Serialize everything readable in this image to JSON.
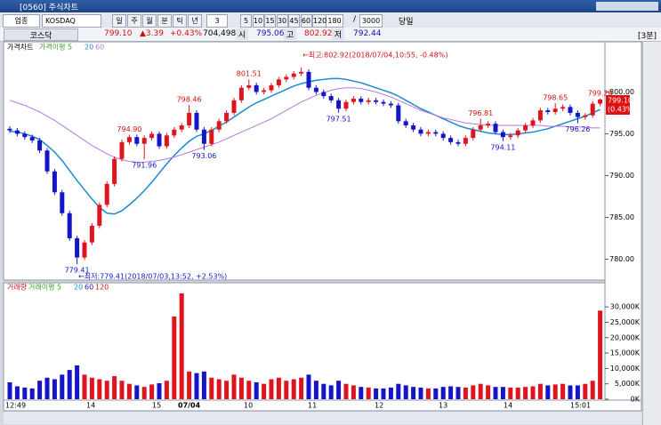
{
  "window": {
    "title": "[0560] 주식차트"
  },
  "toolbar": {
    "market_type": "업종",
    "market": "KOSDAQ",
    "periods": [
      "일",
      "주",
      "월",
      "분",
      "틱",
      "년"
    ],
    "interval": "3",
    "minutes": [
      "5",
      "10",
      "15",
      "30",
      "45",
      "60",
      "120"
    ],
    "count": "180",
    "sep": "/",
    "total": "3000",
    "today": "당일"
  },
  "info": {
    "name": "코스닥",
    "price": "799.10",
    "change": "▲3.39",
    "rate": "+0.43%",
    "volume": "704,498",
    "open_label": "시",
    "open": "795.06",
    "high_label": "고",
    "high": "802.92",
    "low_label": "저",
    "low": "792.44",
    "period": "[3분]"
  },
  "price_box": {
    "price": "799.10",
    "rate": "(0.43%)"
  },
  "x_labels": [
    "12:49",
    "14",
    "15",
    "07/04",
    "10",
    "11",
    "12",
    "13",
    "14",
    "15:01"
  ],
  "chart_data": [
    {
      "type": "candlestick",
      "title": "가격차트",
      "ma_label": "가격이평 5",
      "up_color": "#e0141e",
      "down_color": "#1414c8",
      "open": [
        795.6,
        795.4,
        795.0,
        794.6,
        794.2,
        793.0,
        790.5,
        788.0,
        785.5,
        782.5,
        780.2,
        782.0,
        784.0,
        786.5,
        789.0,
        792.0,
        794.0,
        794.6,
        793.8,
        794.5,
        795.0,
        793.5,
        794.8,
        795.5,
        796.0,
        797.5,
        795.5,
        793.8,
        795.5,
        796.5,
        797.5,
        799.0,
        800.5,
        800.8,
        800.0,
        800.2,
        800.8,
        801.5,
        801.8,
        802.2,
        802.4,
        800.5,
        800.0,
        799.5,
        799.0,
        798.0,
        798.8,
        799.2,
        798.8,
        799.0,
        798.8,
        798.6,
        798.4,
        796.5,
        796.0,
        795.5,
        795.0,
        795.2,
        795.0,
        794.5,
        794.0,
        793.8,
        794.5,
        795.5,
        796.0,
        796.2,
        795.2,
        794.6,
        794.8,
        795.4,
        796.0,
        796.6,
        797.8,
        797.6,
        798.0,
        798.2,
        797.5,
        797.0,
        797.2,
        798.6
      ],
      "high": [
        795.9,
        795.7,
        795.3,
        794.9,
        794.5,
        793.3,
        790.8,
        788.3,
        785.8,
        782.8,
        782.3,
        784.3,
        786.8,
        789.3,
        792.3,
        794.3,
        794.9,
        794.9,
        794.8,
        795.3,
        795.3,
        795.1,
        795.8,
        796.3,
        798.46,
        797.8,
        795.8,
        795.8,
        796.8,
        797.8,
        799.3,
        800.8,
        801.51,
        801.1,
        800.5,
        801.1,
        801.8,
        802.1,
        802.5,
        802.92,
        802.7,
        800.8,
        800.3,
        799.8,
        799.3,
        799.1,
        799.5,
        799.5,
        799.3,
        799.3,
        799.1,
        798.9,
        798.7,
        796.8,
        796.3,
        795.8,
        795.5,
        795.5,
        795.3,
        794.8,
        794.3,
        794.8,
        795.8,
        796.81,
        796.5,
        796.5,
        795.5,
        795.1,
        795.7,
        796.3,
        796.9,
        798.1,
        798.1,
        798.65,
        798.5,
        798.5,
        797.8,
        797.5,
        798.9,
        799.2
      ],
      "low": [
        795.1,
        794.7,
        794.3,
        793.9,
        792.7,
        790.2,
        787.7,
        785.2,
        782.2,
        779.41,
        779.9,
        781.7,
        783.7,
        786.2,
        788.7,
        791.7,
        793.7,
        793.5,
        791.96,
        794.2,
        793.2,
        793.2,
        794.5,
        795.2,
        795.7,
        795.2,
        793.06,
        793.5,
        795.2,
        796.2,
        797.2,
        798.7,
        800.2,
        799.7,
        799.7,
        799.9,
        800.5,
        801.2,
        801.5,
        801.9,
        800.2,
        799.7,
        799.2,
        798.7,
        797.51,
        797.7,
        798.5,
        798.5,
        798.5,
        798.5,
        798.3,
        798.1,
        796.2,
        795.7,
        795.2,
        794.7,
        794.7,
        794.7,
        794.2,
        793.7,
        793.5,
        793.5,
        794.2,
        795.2,
        795.7,
        794.9,
        794.11,
        794.3,
        794.5,
        795.1,
        795.7,
        796.3,
        797.3,
        797.3,
        797.7,
        797.2,
        796.26,
        796.7,
        796.9,
        798.3
      ],
      "close": [
        795.4,
        795.0,
        794.6,
        794.2,
        793.0,
        790.5,
        788.0,
        785.5,
        782.5,
        780.2,
        782.0,
        784.0,
        786.5,
        789.0,
        792.0,
        794.0,
        794.6,
        793.8,
        794.5,
        795.0,
        793.5,
        794.8,
        795.5,
        796.0,
        797.5,
        795.5,
        793.8,
        795.5,
        796.5,
        797.5,
        799.0,
        800.5,
        800.8,
        800.0,
        800.2,
        800.8,
        801.5,
        801.8,
        802.2,
        802.4,
        800.5,
        800.0,
        799.5,
        799.0,
        798.0,
        798.8,
        799.2,
        798.8,
        799.0,
        798.8,
        798.6,
        798.4,
        796.5,
        796.0,
        795.5,
        795.0,
        795.2,
        795.0,
        794.5,
        794.0,
        793.8,
        794.5,
        795.5,
        796.0,
        796.2,
        795.2,
        794.6,
        794.8,
        795.4,
        796.0,
        796.6,
        797.8,
        797.6,
        798.0,
        798.2,
        797.5,
        797.0,
        797.2,
        798.6,
        799.1
      ],
      "high_labels": [
        null,
        null,
        null,
        null,
        null,
        null,
        null,
        null,
        null,
        null,
        null,
        null,
        null,
        null,
        null,
        null,
        "794.90",
        null,
        null,
        null,
        null,
        null,
        null,
        null,
        "798.46",
        null,
        null,
        null,
        null,
        null,
        null,
        null,
        "801.51",
        null,
        null,
        null,
        null,
        null,
        null,
        null,
        null,
        null,
        null,
        null,
        null,
        null,
        null,
        null,
        null,
        null,
        null,
        null,
        null,
        null,
        null,
        null,
        null,
        null,
        null,
        null,
        null,
        null,
        null,
        "796.81",
        null,
        null,
        null,
        null,
        null,
        null,
        null,
        null,
        null,
        "798.65",
        null,
        null,
        null,
        null,
        null,
        "799.20"
      ],
      "low_labels": [
        null,
        null,
        null,
        null,
        null,
        null,
        null,
        null,
        null,
        "779.41",
        null,
        null,
        null,
        null,
        null,
        null,
        null,
        null,
        "791.96",
        null,
        null,
        null,
        null,
        null,
        null,
        null,
        "793.06",
        null,
        null,
        null,
        null,
        null,
        null,
        null,
        null,
        null,
        null,
        null,
        null,
        null,
        null,
        null,
        null,
        null,
        "797.51",
        null,
        null,
        null,
        null,
        null,
        null,
        null,
        null,
        null,
        null,
        null,
        null,
        null,
        null,
        null,
        null,
        null,
        null,
        null,
        null,
        null,
        "794.11",
        null,
        null,
        null,
        null,
        null,
        null,
        null,
        null,
        null,
        "796.26",
        null,
        null,
        null
      ],
      "series": [
        {
          "name": "20",
          "color": "#1a8ad4",
          "values": [
            795.3,
            795.2,
            795.0,
            794.7,
            794.3,
            793.6,
            792.8,
            791.8,
            790.6,
            789.4,
            788.3,
            787.2,
            786.2,
            785.5,
            785.4,
            785.8,
            786.5,
            787.3,
            788.2,
            789.2,
            790.3,
            791.4,
            792.4,
            793.3,
            794.1,
            794.7,
            795.0,
            795.4,
            795.9,
            796.4,
            797.0,
            797.6,
            798.2,
            798.7,
            799.1,
            799.5,
            799.9,
            800.3,
            800.7,
            801.0,
            801.2,
            801.4,
            801.5,
            801.6,
            801.6,
            801.5,
            801.3,
            801.1,
            800.8,
            800.5,
            800.2,
            799.9,
            799.5,
            799.0,
            798.5,
            798.0,
            797.6,
            797.2,
            796.8,
            796.4,
            796.0,
            795.7,
            795.5,
            795.3,
            795.1,
            795.0,
            794.9,
            794.9,
            795.0,
            795.1,
            795.2,
            795.4,
            795.6,
            795.9,
            796.2,
            796.5,
            796.8,
            797.1,
            797.5,
            797.9
          ]
        },
        {
          "name": "60",
          "color": "#b678d8",
          "values": [
            799.0,
            798.7,
            798.4,
            798.0,
            797.6,
            797.1,
            796.6,
            796.0,
            795.4,
            794.8,
            794.2,
            793.6,
            793.1,
            792.6,
            792.2,
            791.9,
            791.7,
            791.6,
            791.6,
            791.7,
            791.8,
            792.0,
            792.2,
            792.5,
            792.8,
            793.1,
            793.4,
            793.7,
            794.0,
            794.4,
            794.8,
            795.2,
            795.6,
            796.0,
            796.4,
            796.8,
            797.3,
            797.8,
            798.3,
            798.8,
            799.2,
            799.6,
            799.9,
            800.2,
            800.4,
            800.5,
            800.5,
            800.4,
            800.2,
            800.0,
            799.7,
            799.4,
            799.0,
            798.6,
            798.2,
            797.8,
            797.5,
            797.2,
            796.9,
            796.7,
            796.5,
            796.3,
            796.2,
            796.1,
            796.0,
            796.0,
            796.0,
            796.0,
            796.0,
            796.0,
            796.0,
            796.0,
            795.9,
            795.9,
            795.9,
            795.8,
            795.8,
            795.8,
            795.7,
            795.7
          ]
        }
      ],
      "ylim": [
        777.5,
        806
      ],
      "yticks": [
        {
          "value": 800,
          "label": "800.00"
        },
        {
          "value": 795,
          "label": "795.00"
        },
        {
          "value": 790,
          "label": "790.00"
        },
        {
          "value": 785,
          "label": "785.00"
        },
        {
          "value": 780,
          "label": "780.00"
        }
      ],
      "annotations": {
        "max": "←최고:802.92(2018/07/04,10:55, -0.48%)",
        "min": "←최저:779.41(2018/07/03,13:52, +2.53%)"
      }
    },
    {
      "type": "bar",
      "title": "거래량",
      "ma_label": "거래이평 5",
      "ma_names": [
        "20",
        "60",
        "120"
      ],
      "values": [
        5500,
        4200,
        3800,
        3500,
        6000,
        7000,
        6500,
        8000,
        9500,
        11000,
        8000,
        7000,
        6500,
        6000,
        7500,
        6000,
        5000,
        4500,
        4000,
        4800,
        5200,
        6000,
        26900,
        34400,
        9000,
        8500,
        9000,
        7000,
        6500,
        6000,
        8000,
        7000,
        6000,
        5500,
        5000,
        6500,
        7000,
        6000,
        6500,
        7000,
        8000,
        6000,
        5000,
        4500,
        6000,
        5000,
        4500,
        4000,
        3800,
        3500,
        3500,
        3800,
        5000,
        4500,
        4000,
        3800,
        3500,
        3500,
        4000,
        4200,
        4000,
        3800,
        4500,
        5000,
        4500,
        4000,
        4000,
        3800,
        3800,
        4000,
        4200,
        5000,
        4500,
        4800,
        5000,
        4500,
        4500,
        5000,
        6000,
        28800
      ],
      "ylim": [
        0,
        36700
      ],
      "yticks": [
        {
          "value": 30000,
          "label": "30,000K"
        },
        {
          "value": 25000,
          "label": "25,000K"
        },
        {
          "value": 20000,
          "label": "20,000K"
        },
        {
          "value": 15000,
          "label": "15,000K"
        },
        {
          "value": 10000,
          "label": "10,000K"
        },
        {
          "value": 5000,
          "label": "5,000K"
        },
        {
          "value": 0,
          "label": "0K"
        }
      ]
    }
  ]
}
